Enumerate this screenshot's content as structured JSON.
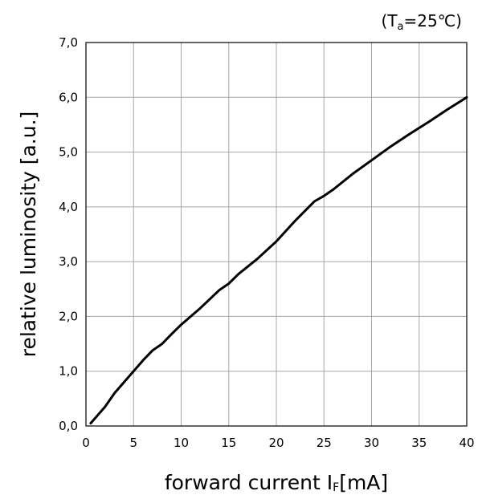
{
  "chart_data": {
    "type": "line",
    "condition": {
      "prefix": "(T",
      "subscript": "a",
      "suffix": "=25℃)"
    },
    "xlabel": {
      "prefix": "forward current I",
      "subscript": "F",
      "suffix": "[mA]"
    },
    "ylabel": "relative luminosity [a.u.]",
    "xlim": [
      0,
      40
    ],
    "ylim": [
      0,
      7
    ],
    "x_ticks": [
      {
        "value": 0,
        "label": "0"
      },
      {
        "value": 5,
        "label": "5"
      },
      {
        "value": 10,
        "label": "10"
      },
      {
        "value": 15,
        "label": "15"
      },
      {
        "value": 20,
        "label": "20"
      },
      {
        "value": 25,
        "label": "25"
      },
      {
        "value": 30,
        "label": "30"
      },
      {
        "value": 35,
        "label": "35"
      },
      {
        "value": 40,
        "label": "40"
      }
    ],
    "y_ticks": [
      {
        "value": 0,
        "label": "0,0"
      },
      {
        "value": 1,
        "label": "1,0"
      },
      {
        "value": 2,
        "label": "2,0"
      },
      {
        "value": 3,
        "label": "3,0"
      },
      {
        "value": 4,
        "label": "4,0"
      },
      {
        "value": 5,
        "label": "5,0"
      },
      {
        "value": 6,
        "label": "6,0"
      },
      {
        "value": 7,
        "label": "7,0"
      }
    ],
    "grid": true,
    "series": [
      {
        "points": [
          [
            0.5,
            0.05
          ],
          [
            1,
            0.15
          ],
          [
            2,
            0.35
          ],
          [
            3,
            0.6
          ],
          [
            4,
            0.8
          ],
          [
            5,
            1.0
          ],
          [
            6,
            1.2
          ],
          [
            7,
            1.38
          ],
          [
            8,
            1.5
          ],
          [
            9,
            1.68
          ],
          [
            10,
            1.85
          ],
          [
            12,
            2.15
          ],
          [
            14,
            2.48
          ],
          [
            15,
            2.6
          ],
          [
            16,
            2.77
          ],
          [
            18,
            3.05
          ],
          [
            20,
            3.37
          ],
          [
            22,
            3.75
          ],
          [
            24,
            4.1
          ],
          [
            25,
            4.2
          ],
          [
            26,
            4.32
          ],
          [
            28,
            4.6
          ],
          [
            30,
            4.85
          ],
          [
            32,
            5.1
          ],
          [
            34,
            5.33
          ],
          [
            36,
            5.55
          ],
          [
            38,
            5.78
          ],
          [
            40,
            6.0
          ]
        ]
      }
    ]
  }
}
